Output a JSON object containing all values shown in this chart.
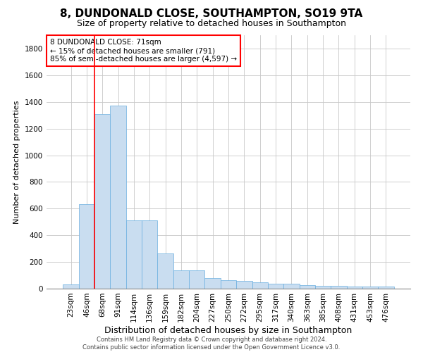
{
  "title": "8, DUNDONALD CLOSE, SOUTHAMPTON, SO19 9TA",
  "subtitle": "Size of property relative to detached houses in Southampton",
  "xlabel": "Distribution of detached houses by size in Southampton",
  "ylabel": "Number of detached properties",
  "categories": [
    "23sqm",
    "46sqm",
    "68sqm",
    "91sqm",
    "114sqm",
    "136sqm",
    "159sqm",
    "182sqm",
    "204sqm",
    "227sqm",
    "250sqm",
    "272sqm",
    "295sqm",
    "317sqm",
    "340sqm",
    "363sqm",
    "385sqm",
    "408sqm",
    "431sqm",
    "453sqm",
    "476sqm"
  ],
  "values": [
    30,
    635,
    1310,
    1370,
    510,
    510,
    265,
    135,
    135,
    80,
    65,
    60,
    50,
    35,
    35,
    28,
    20,
    20,
    15,
    15,
    15
  ],
  "bar_color": "#c9ddf0",
  "bar_edge_color": "#6aaee0",
  "grid_color": "#c8c8c8",
  "red_line_x": 2.0,
  "annotation_box_text": "8 DUNDONALD CLOSE: 71sqm\n← 15% of detached houses are smaller (791)\n85% of semi-detached houses are larger (4,597) →",
  "ylim": [
    0,
    1900
  ],
  "yticks": [
    0,
    200,
    400,
    600,
    800,
    1000,
    1200,
    1400,
    1600,
    1800
  ],
  "footer_line1": "Contains HM Land Registry data © Crown copyright and database right 2024.",
  "footer_line2": "Contains public sector information licensed under the Open Government Licence v3.0.",
  "title_fontsize": 11,
  "subtitle_fontsize": 9,
  "tick_fontsize": 7.5,
  "ylabel_fontsize": 8,
  "xlabel_fontsize": 9,
  "footer_fontsize": 6,
  "annotation_fontsize": 7.5,
  "background_color": "#ffffff"
}
